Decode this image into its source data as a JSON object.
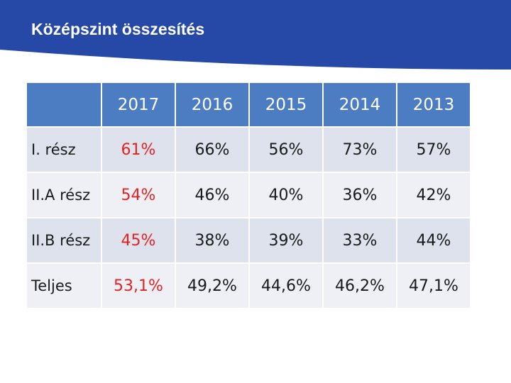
{
  "header": {
    "title": "Középszint összesítés",
    "band_color": "#2649a8"
  },
  "table": {
    "columns": [
      "2017",
      "2016",
      "2015",
      "2014",
      "2013"
    ],
    "rows": [
      {
        "label": "I. rész",
        "values": [
          "61%",
          "66%",
          "56%",
          "73%",
          "57%"
        ]
      },
      {
        "label": "II.A rész",
        "values": [
          "54%",
          "46%",
          "40%",
          "36%",
          "42%"
        ]
      },
      {
        "label": "II.B rész",
        "values": [
          "45%",
          "38%",
          "39%",
          "33%",
          "44%"
        ]
      },
      {
        "label": "Teljes",
        "values": [
          "53,1%",
          "49,2%",
          "44,6%",
          "46,2%",
          "47,1%"
        ]
      }
    ],
    "header_color": "#4c7dc3",
    "row_color_a": "#dde2ed",
    "row_color_b": "#eef0f6",
    "highlight_color": "#e02424"
  }
}
